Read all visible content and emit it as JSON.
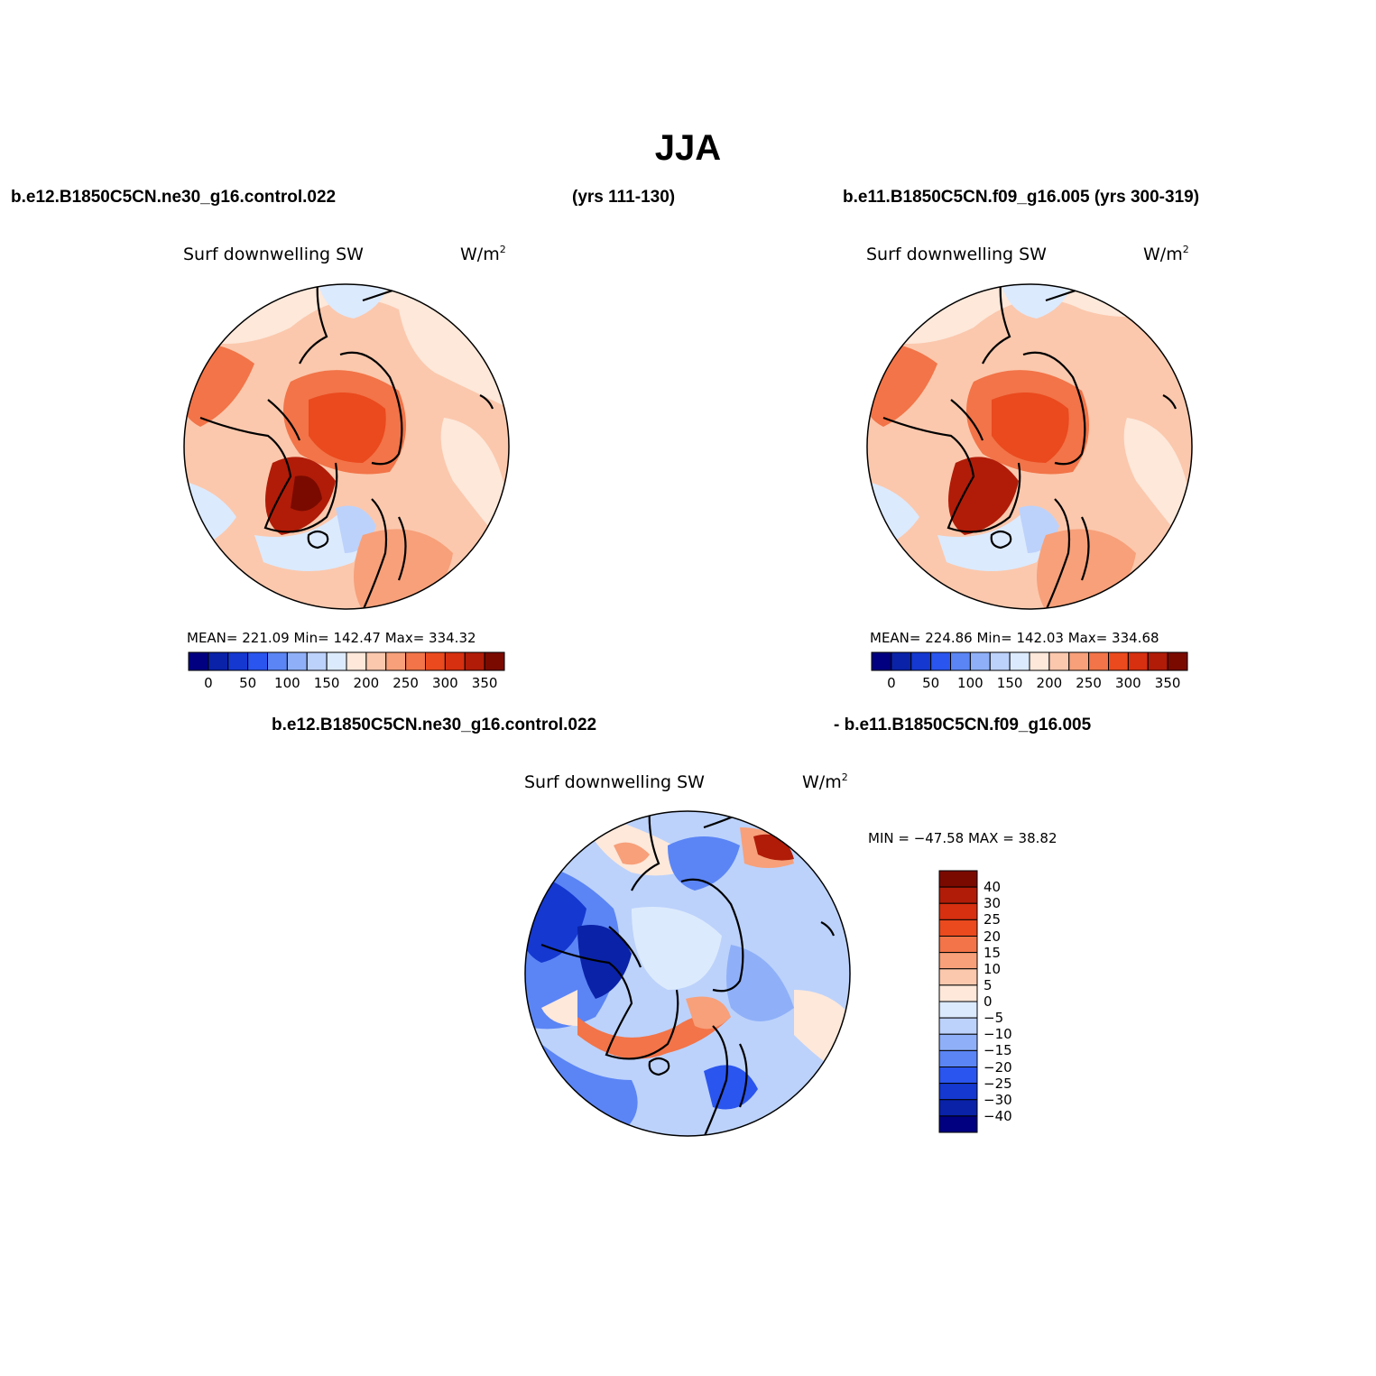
{
  "title": "JJA",
  "header": {
    "case_left": "b.e12.B1850C5CN.ne30_g16.control.022",
    "yrs_left": "(yrs 111-130)",
    "case_right": "b.e11.B1850C5CN.f09_g16.005 (yrs 300-319)",
    "diff_left": "b.e12.B1850C5CN.ne30_g16.control.022",
    "diff_right": "- b.e11.B1850C5CN.f09_g16.005"
  },
  "panels": [
    {
      "id": "left",
      "variable": "Surf downwelling SW",
      "units_base": "W/m",
      "units_exp": "2",
      "stats": "MEAN= 221.09   Min= 142.47   Max= 334.32",
      "mean": 221.09,
      "min": 142.47,
      "max": 334.32
    },
    {
      "id": "right",
      "variable": "Surf downwelling SW",
      "units_base": "W/m",
      "units_exp": "2",
      "stats": "MEAN= 224.86   Min= 142.03   Max= 334.68",
      "mean": 224.86,
      "min": 142.03,
      "max": 334.68
    },
    {
      "id": "diff",
      "variable": "Surf downwelling SW",
      "units_base": "W/m",
      "units_exp": "2",
      "stats": "MIN = −47.58 MAX =  38.82",
      "min": -47.58,
      "max": 38.82
    }
  ],
  "colorbar_abs": {
    "orientation": "horizontal",
    "colors": [
      "#000080",
      "#0a22a8",
      "#1438d0",
      "#2a55ee",
      "#5b85f5",
      "#8fb0f8",
      "#bcd2fb",
      "#dceafd",
      "#fde8da",
      "#fbc8ad",
      "#f7a07a",
      "#f27448",
      "#ea4a1e",
      "#d63010",
      "#b01c08",
      "#7a0a00"
    ],
    "labels": [
      "0",
      "50",
      "100",
      "150",
      "200",
      "250",
      "300",
      "350"
    ]
  },
  "colorbar_diff": {
    "orientation": "vertical",
    "colors_top_to_bottom": [
      "#7a0a00",
      "#b01c08",
      "#d63010",
      "#ea4a1e",
      "#f27448",
      "#f7a07a",
      "#fbc8ad",
      "#fde8da",
      "#dceafd",
      "#bcd2fb",
      "#8fb0f8",
      "#5b85f5",
      "#2a55ee",
      "#1438d0",
      "#0a22a8",
      "#000080"
    ],
    "labels": [
      "40",
      "30",
      "25",
      "20",
      "15",
      "10",
      "5",
      "0",
      "−5",
      "−10",
      "−15",
      "−20",
      "−25",
      "−30",
      "−40"
    ]
  },
  "map_colors": {
    "abs_background": "#fbc8ad",
    "abs_low": "#dceafd",
    "abs_mid": "#fde8da",
    "abs_high": "#f27448",
    "abs_greenland_high": "#b01c08",
    "abs_central": "#ea4a1e",
    "diff_background": "#bcd2fb",
    "diff_strong_neg": "#1438d0",
    "diff_pos": "#f27448",
    "diff_strong_pos": "#b01c08"
  }
}
